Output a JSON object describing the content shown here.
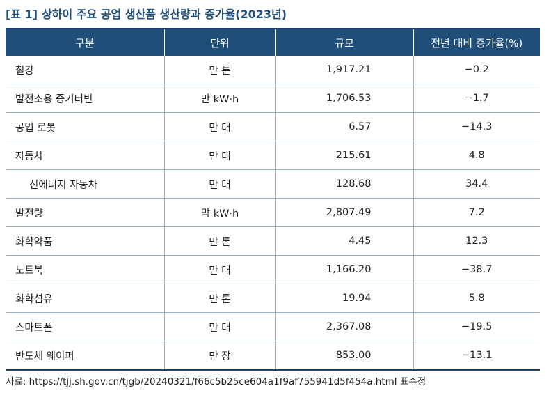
{
  "title": {
    "tag": "[표 1]",
    "text": "상하이 주요 공업 생산품 생산량과 증가율(2023년)"
  },
  "table": {
    "headers": [
      "구분",
      "단위",
      "규모",
      "전년 대비 증가율(%)"
    ],
    "rows": [
      {
        "item": "철강",
        "unit": "만 톤",
        "scale": "1,917.21",
        "growth": "−0.2",
        "indent": false
      },
      {
        "item": "발전소용 증기터빈",
        "unit": "만 kW·h",
        "scale": "1,706.53",
        "growth": "−1.7",
        "indent": false
      },
      {
        "item": "공업 로봇",
        "unit": "만 대",
        "scale": "6.57",
        "growth": "−14.3",
        "indent": false
      },
      {
        "item": "자동차",
        "unit": "만 대",
        "scale": "215.61",
        "growth": "4.8",
        "indent": false
      },
      {
        "item": "신에너지 자동차",
        "unit": "만 대",
        "scale": "128.68",
        "growth": "34.4",
        "indent": true
      },
      {
        "item": "발전량",
        "unit": "막 kW·h",
        "scale": "2,807.49",
        "growth": "7.2",
        "indent": false
      },
      {
        "item": "화학약품",
        "unit": "만 톤",
        "scale": "4.45",
        "growth": "12.3",
        "indent": false
      },
      {
        "item": "노트북",
        "unit": "만 대",
        "scale": "1,166.20",
        "growth": "−38.7",
        "indent": false
      },
      {
        "item": "화학섬유",
        "unit": "만 톤",
        "scale": "19.94",
        "growth": "5.8",
        "indent": false
      },
      {
        "item": "스마트폰",
        "unit": "만 대",
        "scale": "2,367.08",
        "growth": "−19.5",
        "indent": false
      },
      {
        "item": "반도체 웨이퍼",
        "unit": "만 장",
        "scale": "853.00",
        "growth": "−13.1",
        "indent": false
      }
    ]
  },
  "source": "자료: https://tjj.sh.gov.cn/tjgb/20240321/f66c5b25ce604a1f9af755941d5f454a.html 표수정",
  "colors": {
    "header_bg": "#1f4e79",
    "title_text": "#1f4e79",
    "row_border": "#9bb0c4"
  }
}
